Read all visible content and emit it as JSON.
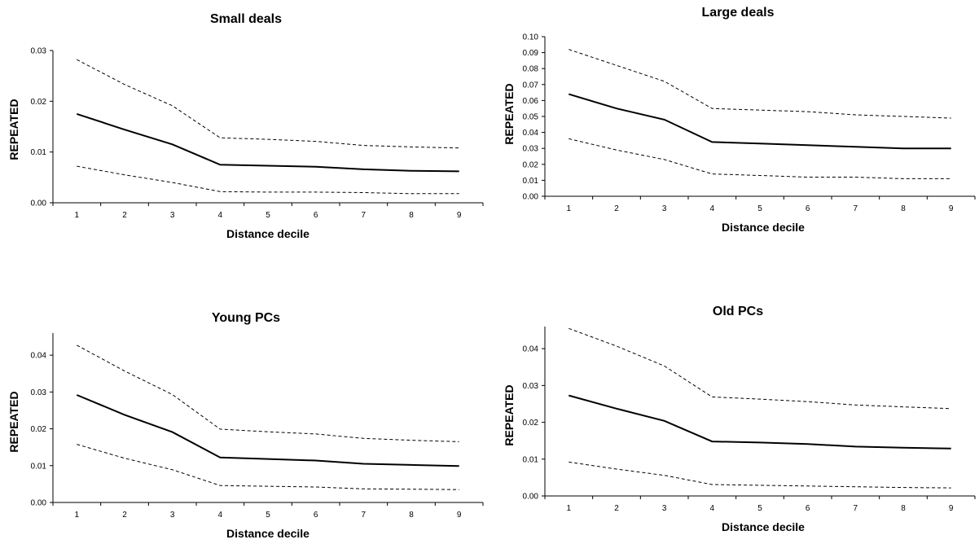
{
  "chart_data": [
    {
      "type": "line",
      "title": "Small deals",
      "xlabel": "Distance decile",
      "ylabel": "REPEATED",
      "x": [
        1,
        2,
        3,
        4,
        5,
        6,
        7,
        8,
        9
      ],
      "ylim": [
        0,
        0.03
      ],
      "yticks": [
        "0.00",
        "0.01",
        "0.02",
        "0.03"
      ],
      "series": [
        {
          "style": "solid",
          "values": [
            0.0175,
            0.0144,
            0.0115,
            0.0075,
            0.0073,
            0.0071,
            0.0066,
            0.0063,
            0.0062
          ]
        },
        {
          "style": "dashed",
          "values": [
            0.0282,
            0.0233,
            0.0191,
            0.0128,
            0.0125,
            0.0121,
            0.0113,
            0.011,
            0.0108
          ]
        },
        {
          "style": "dashed",
          "values": [
            0.0072,
            0.0055,
            0.004,
            0.0022,
            0.0021,
            0.0021,
            0.002,
            0.0018,
            0.0018
          ]
        }
      ]
    },
    {
      "type": "line",
      "title": "Large deals",
      "xlabel": "Distance decile",
      "ylabel": "REPEATED",
      "x": [
        1,
        2,
        3,
        4,
        5,
        6,
        7,
        8,
        9
      ],
      "ylim": [
        0,
        0.1
      ],
      "yticks": [
        "0.00",
        "0.01",
        "0.02",
        "0.03",
        "0.04",
        "0.05",
        "0.06",
        "0.07",
        "0.08",
        "0.09",
        "0.10"
      ],
      "series": [
        {
          "style": "solid",
          "values": [
            0.064,
            0.055,
            0.048,
            0.034,
            0.033,
            0.032,
            0.031,
            0.03,
            0.03
          ]
        },
        {
          "style": "dashed",
          "values": [
            0.092,
            0.082,
            0.072,
            0.055,
            0.054,
            0.053,
            0.051,
            0.05,
            0.049
          ]
        },
        {
          "style": "dashed",
          "values": [
            0.036,
            0.029,
            0.023,
            0.014,
            0.013,
            0.012,
            0.012,
            0.011,
            0.011
          ]
        }
      ]
    },
    {
      "type": "line",
      "title": "Young PCs",
      "xlabel": "Distance decile",
      "ylabel": "REPEATED",
      "x": [
        1,
        2,
        3,
        4,
        5,
        6,
        7,
        8,
        9
      ],
      "ylim": [
        0,
        0.046
      ],
      "yticks": [
        "0.00",
        "0.01",
        "0.02",
        "0.03",
        "0.04"
      ],
      "series": [
        {
          "style": "solid",
          "values": [
            0.0292,
            0.0238,
            0.0191,
            0.0122,
            0.0118,
            0.0114,
            0.0105,
            0.0102,
            0.0099
          ]
        },
        {
          "style": "dashed",
          "values": [
            0.0427,
            0.0357,
            0.0293,
            0.0199,
            0.0192,
            0.0186,
            0.0174,
            0.0169,
            0.0165
          ]
        },
        {
          "style": "dashed",
          "values": [
            0.0158,
            0.012,
            0.0089,
            0.0046,
            0.0044,
            0.0042,
            0.0037,
            0.0036,
            0.0035
          ]
        }
      ]
    },
    {
      "type": "line",
      "title": "Old PCs",
      "xlabel": "Distance decile",
      "ylabel": "REPEATED",
      "x": [
        1,
        2,
        3,
        4,
        5,
        6,
        7,
        8,
        9
      ],
      "ylim": [
        0,
        0.046
      ],
      "yticks": [
        "0.00",
        "0.01",
        "0.02",
        "0.03",
        "0.04"
      ],
      "series": [
        {
          "style": "solid",
          "values": [
            0.0273,
            0.0237,
            0.0204,
            0.0148,
            0.0145,
            0.0141,
            0.0134,
            0.0131,
            0.0129
          ]
        },
        {
          "style": "dashed",
          "values": [
            0.0455,
            0.0407,
            0.0353,
            0.0269,
            0.0263,
            0.0256,
            0.0247,
            0.0242,
            0.0237
          ]
        },
        {
          "style": "dashed",
          "values": [
            0.0092,
            0.0073,
            0.0056,
            0.0031,
            0.0029,
            0.0027,
            0.0025,
            0.0023,
            0.0022
          ]
        }
      ]
    }
  ]
}
